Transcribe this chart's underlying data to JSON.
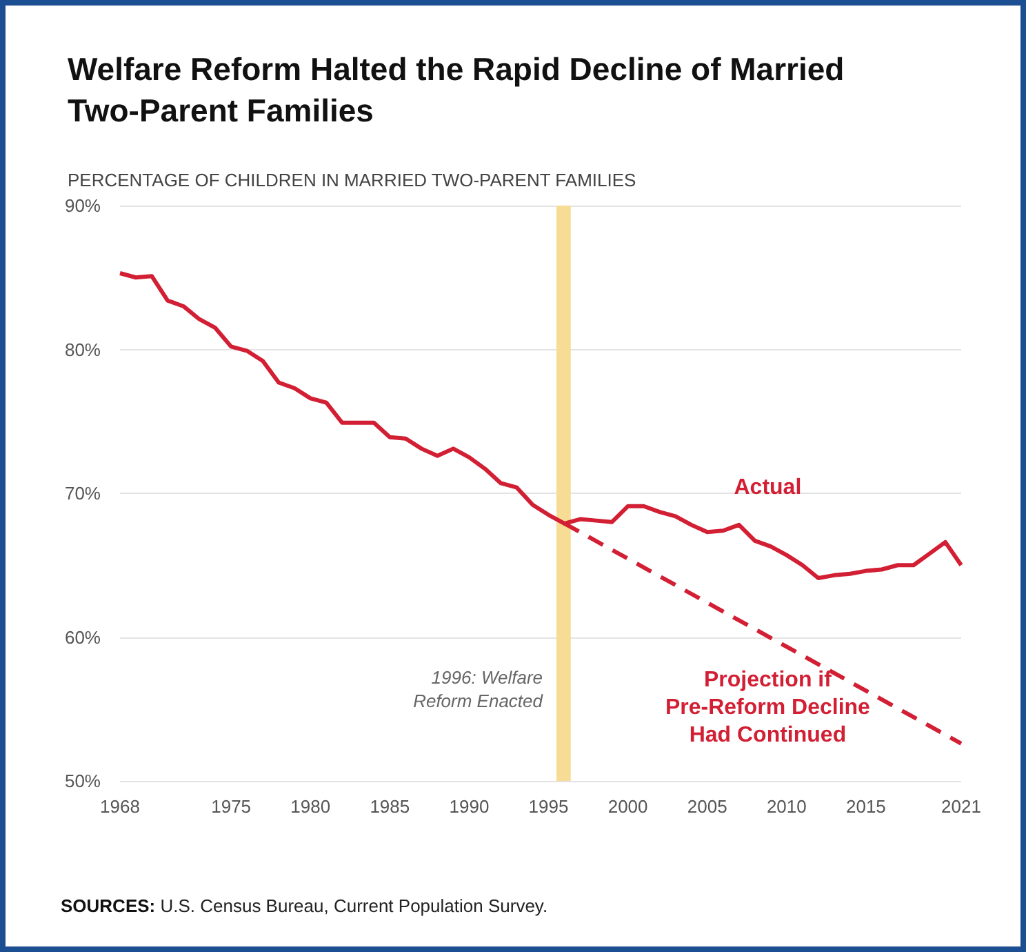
{
  "chart_data": {
    "type": "line",
    "title": "Welfare Reform Halted the Rapid Decline of Married\nTwo-Parent Families",
    "ylabel": "PERCENTAGE OF CHILDREN IN MARRIED TWO-PARENT FAMILIES",
    "x": [
      1968,
      1969,
      1970,
      1971,
      1972,
      1973,
      1974,
      1975,
      1976,
      1977,
      1978,
      1979,
      1980,
      1981,
      1982,
      1983,
      1984,
      1985,
      1986,
      1987,
      1988,
      1989,
      1990,
      1991,
      1992,
      1993,
      1994,
      1995,
      1996,
      1997,
      1998,
      1999,
      2000,
      2001,
      2002,
      2003,
      2004,
      2005,
      2006,
      2007,
      2008,
      2009,
      2010,
      2011,
      2012,
      2013,
      2014,
      2015,
      2016,
      2017,
      2018,
      2019,
      2020,
      2021
    ],
    "series": [
      {
        "name": "Actual",
        "color": "#d21f34",
        "line_style": "solid",
        "values": [
          85.3,
          85.0,
          85.1,
          83.4,
          83.0,
          82.1,
          81.5,
          80.2,
          79.9,
          79.2,
          77.7,
          77.3,
          76.6,
          76.3,
          74.9,
          74.9,
          74.9,
          73.9,
          73.8,
          73.1,
          72.6,
          73.1,
          72.5,
          71.7,
          70.7,
          70.4,
          69.2,
          68.5,
          67.9,
          68.2,
          68.1,
          68.0,
          69.1,
          69.1,
          68.7,
          68.4,
          67.8,
          67.3,
          67.4,
          67.8,
          66.7,
          66.3,
          65.7,
          65.0,
          64.1,
          64.3,
          64.4,
          64.6,
          64.7,
          65.0,
          65.0,
          65.8,
          66.6,
          65.0
        ]
      },
      {
        "name": "Projection if\nPre-Reform Decline\nHad Continued",
        "color": "#d21f34",
        "line_style": "dashed",
        "x": [
          1996,
          2021
        ],
        "values": [
          67.9,
          52.6
        ]
      }
    ],
    "xlim": [
      1968,
      2021
    ],
    "xticks": [
      1968,
      1975,
      1980,
      1985,
      1990,
      1995,
      2000,
      2005,
      2010,
      2015,
      2021
    ],
    "ylim": [
      50,
      90
    ],
    "yticks": [
      {
        "value": 50,
        "label": "50%"
      },
      {
        "value": 60,
        "label": "60%"
      },
      {
        "value": 70,
        "label": "70%"
      },
      {
        "value": 80,
        "label": "80%"
      },
      {
        "value": 90,
        "label": "90%"
      }
    ],
    "grid": "y",
    "marker": "none",
    "legend": false,
    "bands": [
      {
        "axis": "x",
        "from": 1995.5,
        "to": 1996.4,
        "label": "1996: Welfare\nReform Enacted",
        "color": "#f7dc95"
      }
    ],
    "annotations": [
      "SOURCES: U.S. Census Bureau, Current Population Survey."
    ]
  }
}
